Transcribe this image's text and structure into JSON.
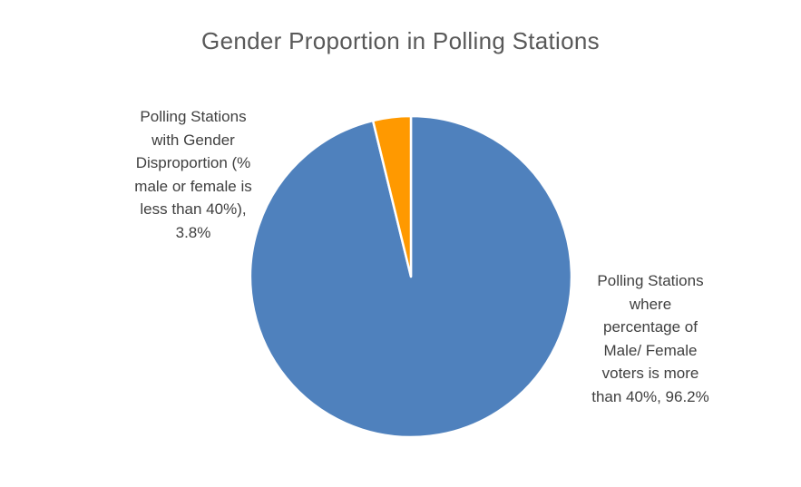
{
  "chart_data": {
    "type": "pie",
    "title": "Gender Proportion in Polling Stations",
    "slices": [
      {
        "label": "Polling Stations where percentage of Male/ Female voters is more than 40%",
        "value": 96.2,
        "value_label": "96.2%",
        "color": "#4f81bd",
        "label_lines": [
          "Polling Stations",
          "where",
          "percentage of",
          "Male/ Female",
          "voters is more",
          "than 40%, 96.2%"
        ]
      },
      {
        "label": "Polling Stations with Gender Disproportion (% male or female is less than 40%)",
        "value": 3.8,
        "value_label": "3.8%",
        "color": "#ff9900",
        "label_lines": [
          "Polling Stations",
          "with Gender",
          "Disproportion (%",
          "male or female is",
          "less than 40%),",
          "3.8%"
        ]
      }
    ],
    "start_angle": "12 o'clock",
    "direction": "clockwise",
    "legend": "none"
  }
}
